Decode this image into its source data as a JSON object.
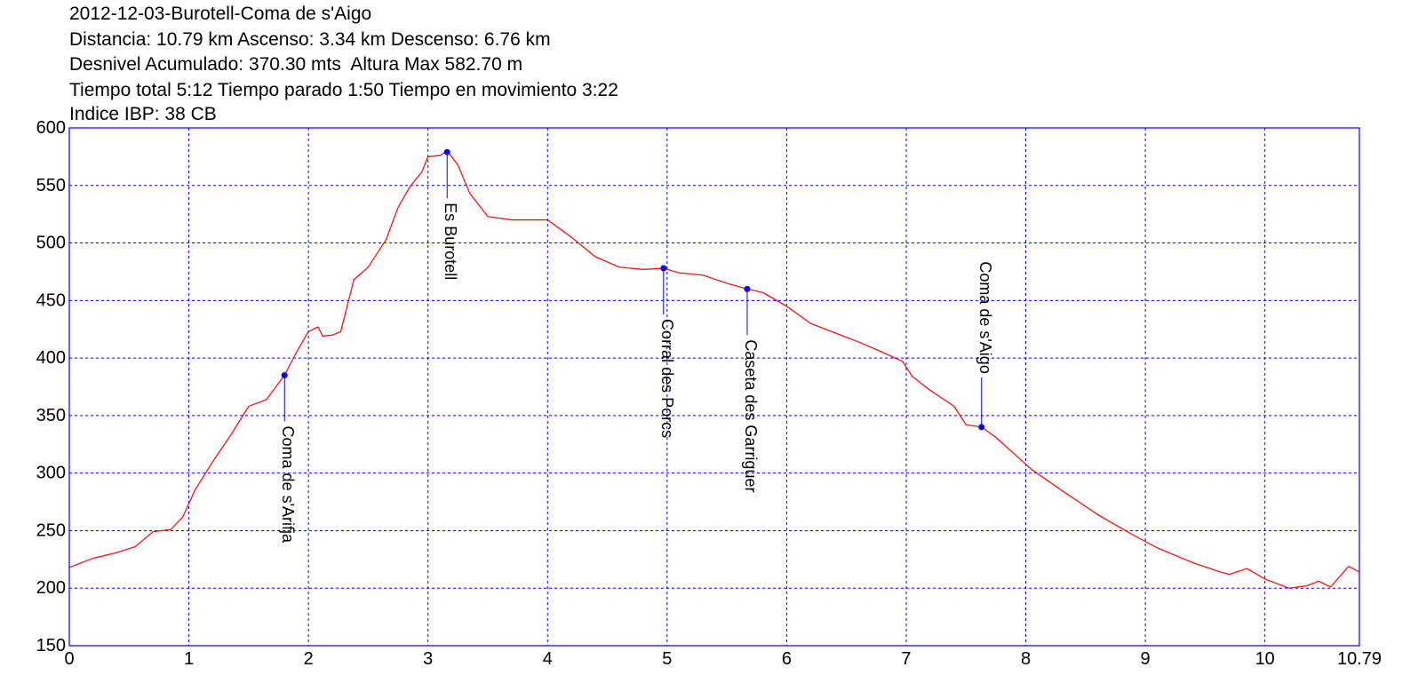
{
  "header": {
    "line1": "2012-12-03-Burotell-Coma de s'Aigo",
    "line2": "Distancia: 10.79 km Ascenso: 3.34 km Descenso: 6.76 km",
    "line3": "Desnivel Acumulado: 370.30 mts  Altura Max 582.70 m",
    "line4": "Tiempo total 5:12 Tiempo parado 1:50 Tiempo en movimiento 3:22",
    "line5": "Indice IBP: 38 CB"
  },
  "colors": {
    "profile": "#ff0000",
    "frame": "#0000ff",
    "grid": "#0000ff",
    "waypoint": "#0000ff",
    "text": "#000000"
  },
  "chart_data": {
    "type": "line",
    "title": "",
    "xlabel": "",
    "ylabel": "",
    "xlim": [
      0,
      10.79
    ],
    "ylim": [
      150,
      600
    ],
    "grid": true,
    "x_ticks": [
      "0",
      "1",
      "2",
      "3",
      "4",
      "5",
      "6",
      "7",
      "8",
      "9",
      "10",
      "10.79"
    ],
    "y_ticks": [
      "600",
      "550",
      "500",
      "450",
      "400",
      "350",
      "300",
      "250",
      "200",
      "150"
    ],
    "series": [
      {
        "points": [
          [
            0.0,
            218
          ],
          [
            0.2,
            226
          ],
          [
            0.4,
            231
          ],
          [
            0.55,
            236
          ],
          [
            0.7,
            249
          ],
          [
            0.85,
            251
          ],
          [
            0.95,
            262
          ],
          [
            1.05,
            285
          ],
          [
            1.2,
            310
          ],
          [
            1.35,
            333
          ],
          [
            1.5,
            358
          ],
          [
            1.65,
            364
          ],
          [
            1.8,
            385
          ],
          [
            1.9,
            405
          ],
          [
            2.0,
            423
          ],
          [
            2.08,
            427
          ],
          [
            2.12,
            419
          ],
          [
            2.2,
            420
          ],
          [
            2.27,
            423
          ],
          [
            2.38,
            468
          ],
          [
            2.5,
            479
          ],
          [
            2.65,
            503
          ],
          [
            2.75,
            531
          ],
          [
            2.85,
            549
          ],
          [
            2.95,
            562
          ],
          [
            3.0,
            575
          ],
          [
            3.1,
            576
          ],
          [
            3.16,
            580
          ],
          [
            3.25,
            568
          ],
          [
            3.35,
            543
          ],
          [
            3.5,
            523
          ],
          [
            3.7,
            520
          ],
          [
            3.85,
            520
          ],
          [
            4.0,
            520
          ],
          [
            4.2,
            505
          ],
          [
            4.4,
            488
          ],
          [
            4.6,
            479
          ],
          [
            4.8,
            477
          ],
          [
            4.97,
            478
          ],
          [
            5.1,
            474
          ],
          [
            5.3,
            472
          ],
          [
            5.5,
            465
          ],
          [
            5.67,
            460
          ],
          [
            5.8,
            457
          ],
          [
            6.0,
            445
          ],
          [
            6.2,
            430
          ],
          [
            6.4,
            422
          ],
          [
            6.6,
            414
          ],
          [
            6.8,
            405
          ],
          [
            6.97,
            397
          ],
          [
            7.05,
            384
          ],
          [
            7.2,
            372
          ],
          [
            7.4,
            358
          ],
          [
            7.5,
            342
          ],
          [
            7.63,
            340
          ],
          [
            7.75,
            331
          ],
          [
            7.9,
            317
          ],
          [
            8.05,
            303
          ],
          [
            8.3,
            285
          ],
          [
            8.6,
            264
          ],
          [
            8.9,
            246
          ],
          [
            9.1,
            235
          ],
          [
            9.4,
            222
          ],
          [
            9.6,
            215
          ],
          [
            9.7,
            212
          ],
          [
            9.85,
            217
          ],
          [
            10.0,
            208
          ],
          [
            10.2,
            200
          ],
          [
            10.35,
            202
          ],
          [
            10.45,
            206
          ],
          [
            10.55,
            201
          ],
          [
            10.7,
            219
          ],
          [
            10.79,
            214
          ]
        ]
      }
    ],
    "waypoints": [
      {
        "label": "Coma de s'Arifja",
        "x": 1.8,
        "y": 385,
        "side": "below"
      },
      {
        "label": "Es Burotell",
        "x": 3.16,
        "y": 579,
        "side": "below"
      },
      {
        "label": "Corral des Porcs",
        "x": 4.97,
        "y": 478,
        "side": "below"
      },
      {
        "label": "Caseta des Garriguer",
        "x": 5.67,
        "y": 460,
        "side": "below"
      },
      {
        "label": "Coma de s'Aigo",
        "x": 7.63,
        "y": 340,
        "side": "above"
      }
    ]
  }
}
